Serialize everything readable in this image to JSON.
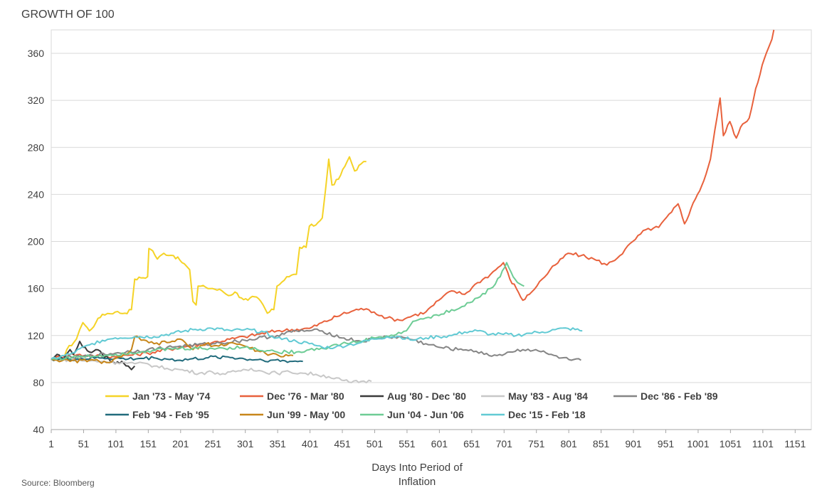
{
  "chart_data": {
    "type": "line",
    "title": "GROWTH OF 100",
    "xlabel_line1": "Days Into Period of",
    "xlabel_line2": "Inflation",
    "source": "Source: Bloomberg",
    "xlim": [
      1,
      1176
    ],
    "ylim": [
      40,
      380
    ],
    "x_ticks": [
      1,
      51,
      101,
      151,
      201,
      251,
      301,
      351,
      401,
      451,
      501,
      551,
      601,
      651,
      701,
      751,
      801,
      851,
      901,
      951,
      1001,
      1051,
      1101,
      1151
    ],
    "y_ticks": [
      40,
      80,
      120,
      160,
      200,
      240,
      280,
      320,
      360
    ],
    "grid": "horizontal",
    "legend_position": "bottom-left-inside",
    "series": [
      {
        "name": "Jan '73 - May '74",
        "color": "#F5D327",
        "points": [
          [
            1,
            100
          ],
          [
            20,
            100
          ],
          [
            25,
            108
          ],
          [
            40,
            117
          ],
          [
            45,
            125
          ],
          [
            50,
            131
          ],
          [
            60,
            124
          ],
          [
            70,
            131
          ],
          [
            80,
            138
          ],
          [
            100,
            140
          ],
          [
            115,
            139
          ],
          [
            125,
            142
          ],
          [
            130,
            168
          ],
          [
            140,
            169
          ],
          [
            150,
            170
          ],
          [
            152,
            194
          ],
          [
            158,
            192
          ],
          [
            165,
            185
          ],
          [
            175,
            190
          ],
          [
            190,
            188
          ],
          [
            200,
            184
          ],
          [
            210,
            179
          ],
          [
            215,
            176
          ],
          [
            220,
            149
          ],
          [
            225,
            146
          ],
          [
            228,
            162
          ],
          [
            240,
            161
          ],
          [
            250,
            160
          ],
          [
            265,
            158
          ],
          [
            275,
            154
          ],
          [
            285,
            157
          ],
          [
            295,
            152
          ],
          [
            305,
            150
          ],
          [
            315,
            153
          ],
          [
            325,
            149
          ],
          [
            335,
            139
          ],
          [
            345,
            142
          ],
          [
            350,
            162
          ],
          [
            365,
            170
          ],
          [
            380,
            172
          ],
          [
            385,
            195
          ],
          [
            395,
            195
          ],
          [
            400,
            213
          ],
          [
            410,
            214
          ],
          [
            420,
            220
          ],
          [
            425,
            244
          ],
          [
            430,
            270
          ],
          [
            435,
            248
          ],
          [
            445,
            253
          ],
          [
            455,
            264
          ],
          [
            462,
            272
          ],
          [
            470,
            260
          ],
          [
            480,
            266
          ],
          [
            488,
            268
          ]
        ]
      },
      {
        "name": "Dec '76 - Mar '80",
        "color": "#E8613C",
        "points": [
          [
            1,
            100
          ],
          [
            30,
            104
          ],
          [
            60,
            103
          ],
          [
            100,
            102
          ],
          [
            150,
            105
          ],
          [
            200,
            110
          ],
          [
            250,
            114
          ],
          [
            300,
            119
          ],
          [
            350,
            124
          ],
          [
            400,
            126
          ],
          [
            450,
            138
          ],
          [
            480,
            143
          ],
          [
            500,
            140
          ],
          [
            520,
            135
          ],
          [
            540,
            133
          ],
          [
            560,
            137
          ],
          [
            580,
            140
          ],
          [
            600,
            150
          ],
          [
            620,
            158
          ],
          [
            640,
            155
          ],
          [
            660,
            165
          ],
          [
            680,
            172
          ],
          [
            700,
            182
          ],
          [
            710,
            168
          ],
          [
            720,
            160
          ],
          [
            730,
            150
          ],
          [
            740,
            155
          ],
          [
            760,
            168
          ],
          [
            780,
            180
          ],
          [
            800,
            190
          ],
          [
            820,
            188
          ],
          [
            840,
            185
          ],
          [
            860,
            180
          ],
          [
            880,
            188
          ],
          [
            900,
            200
          ],
          [
            920,
            210
          ],
          [
            940,
            212
          ],
          [
            960,
            225
          ],
          [
            970,
            232
          ],
          [
            980,
            215
          ],
          [
            990,
            228
          ],
          [
            1000,
            240
          ],
          [
            1010,
            252
          ],
          [
            1020,
            270
          ],
          [
            1030,
            305
          ],
          [
            1035,
            322
          ],
          [
            1040,
            290
          ],
          [
            1050,
            302
          ],
          [
            1060,
            288
          ],
          [
            1070,
            300
          ],
          [
            1080,
            305
          ],
          [
            1090,
            330
          ],
          [
            1100,
            350
          ],
          [
            1110,
            365
          ],
          [
            1115,
            372
          ],
          [
            1118,
            380
          ]
        ]
      },
      {
        "name": "Aug '80 - Dec '80",
        "color": "#3A3A3A",
        "points": [
          [
            1,
            100
          ],
          [
            10,
            104
          ],
          [
            20,
            100
          ],
          [
            30,
            108
          ],
          [
            35,
            104
          ],
          [
            45,
            115
          ],
          [
            50,
            110
          ],
          [
            60,
            106
          ],
          [
            70,
            108
          ],
          [
            80,
            104
          ],
          [
            90,
            100
          ],
          [
            100,
            96
          ],
          [
            110,
            98
          ],
          [
            120,
            94
          ],
          [
            125,
            91
          ],
          [
            130,
            94
          ]
        ]
      },
      {
        "name": "May '83 - Aug '84",
        "color": "#C8C8C8",
        "points": [
          [
            1,
            100
          ],
          [
            40,
            99
          ],
          [
            80,
            98
          ],
          [
            110,
            97
          ],
          [
            130,
            96
          ],
          [
            150,
            96
          ],
          [
            160,
            94
          ],
          [
            180,
            92
          ],
          [
            200,
            91
          ],
          [
            230,
            88
          ],
          [
            250,
            89
          ],
          [
            270,
            87
          ],
          [
            290,
            90
          ],
          [
            310,
            92
          ],
          [
            330,
            89
          ],
          [
            350,
            88
          ],
          [
            370,
            89
          ],
          [
            390,
            88
          ],
          [
            410,
            87
          ],
          [
            430,
            85
          ],
          [
            450,
            82
          ],
          [
            465,
            80
          ],
          [
            480,
            81
          ],
          [
            496,
            81
          ]
        ]
      },
      {
        "name": "Dec '86 - Feb '89",
        "color": "#858585",
        "points": [
          [
            1,
            100
          ],
          [
            50,
            102
          ],
          [
            100,
            105
          ],
          [
            150,
            108
          ],
          [
            200,
            111
          ],
          [
            250,
            113
          ],
          [
            300,
            116
          ],
          [
            350,
            120
          ],
          [
            380,
            124
          ],
          [
            400,
            124
          ],
          [
            420,
            124
          ],
          [
            450,
            118
          ],
          [
            480,
            115
          ],
          [
            500,
            117
          ],
          [
            520,
            119
          ],
          [
            550,
            118
          ],
          [
            580,
            113
          ],
          [
            600,
            110
          ],
          [
            630,
            108
          ],
          [
            650,
            108
          ],
          [
            670,
            104
          ],
          [
            690,
            103
          ],
          [
            710,
            106
          ],
          [
            730,
            108
          ],
          [
            750,
            108
          ],
          [
            770,
            104
          ],
          [
            790,
            101
          ],
          [
            805,
            99
          ],
          [
            820,
            99
          ]
        ]
      },
      {
        "name": "Feb '94 - Feb '95",
        "color": "#216B7C",
        "points": [
          [
            1,
            100
          ],
          [
            40,
            100
          ],
          [
            80,
            101
          ],
          [
            120,
            100
          ],
          [
            160,
            101
          ],
          [
            200,
            99
          ],
          [
            240,
            101
          ],
          [
            270,
            102
          ],
          [
            300,
            100
          ],
          [
            340,
            99
          ],
          [
            370,
            98
          ],
          [
            390,
            98
          ]
        ]
      },
      {
        "name": "Jun '99 - May '00",
        "color": "#C7861A",
        "points": [
          [
            1,
            100
          ],
          [
            30,
            98
          ],
          [
            60,
            99
          ],
          [
            90,
            97
          ],
          [
            110,
            102
          ],
          [
            125,
            108
          ],
          [
            130,
            119
          ],
          [
            140,
            116
          ],
          [
            160,
            113
          ],
          [
            180,
            114
          ],
          [
            200,
            117
          ],
          [
            220,
            108
          ],
          [
            240,
            113
          ],
          [
            260,
            111
          ],
          [
            280,
            114
          ],
          [
            300,
            111
          ],
          [
            320,
            107
          ],
          [
            340,
            104
          ],
          [
            360,
            102
          ],
          [
            375,
            103
          ]
        ]
      },
      {
        "name": "Jun '04 - Jun '06",
        "color": "#6DCC95",
        "points": [
          [
            1,
            100
          ],
          [
            50,
            102
          ],
          [
            100,
            104
          ],
          [
            150,
            107
          ],
          [
            200,
            109
          ],
          [
            250,
            109
          ],
          [
            300,
            110
          ],
          [
            350,
            106
          ],
          [
            380,
            106
          ],
          [
            400,
            108
          ],
          [
            430,
            110
          ],
          [
            450,
            113
          ],
          [
            480,
            115
          ],
          [
            500,
            118
          ],
          [
            530,
            120
          ],
          [
            550,
            124
          ],
          [
            560,
            132
          ],
          [
            580,
            135
          ],
          [
            600,
            137
          ],
          [
            620,
            142
          ],
          [
            640,
            145
          ],
          [
            660,
            152
          ],
          [
            680,
            160
          ],
          [
            695,
            170
          ],
          [
            705,
            182
          ],
          [
            715,
            170
          ],
          [
            725,
            164
          ],
          [
            732,
            162
          ]
        ]
      },
      {
        "name": "Dec '15 - Feb '18",
        "color": "#62CAD4",
        "points": [
          [
            1,
            100
          ],
          [
            30,
            104
          ],
          [
            60,
            112
          ],
          [
            80,
            116
          ],
          [
            100,
            118
          ],
          [
            130,
            119
          ],
          [
            160,
            119
          ],
          [
            190,
            122
          ],
          [
            220,
            125
          ],
          [
            250,
            126
          ],
          [
            280,
            124
          ],
          [
            300,
            125
          ],
          [
            330,
            123
          ],
          [
            350,
            118
          ],
          [
            380,
            115
          ],
          [
            400,
            113
          ],
          [
            420,
            110
          ],
          [
            440,
            110
          ],
          [
            460,
            112
          ],
          [
            480,
            114
          ],
          [
            500,
            117
          ],
          [
            520,
            119
          ],
          [
            540,
            119
          ],
          [
            560,
            116
          ],
          [
            580,
            118
          ],
          [
            600,
            119
          ],
          [
            620,
            120
          ],
          [
            640,
            123
          ],
          [
            660,
            124
          ],
          [
            680,
            121
          ],
          [
            700,
            121
          ],
          [
            720,
            120
          ],
          [
            740,
            122
          ],
          [
            760,
            123
          ],
          [
            780,
            125
          ],
          [
            800,
            126
          ],
          [
            822,
            124
          ]
        ]
      }
    ]
  }
}
